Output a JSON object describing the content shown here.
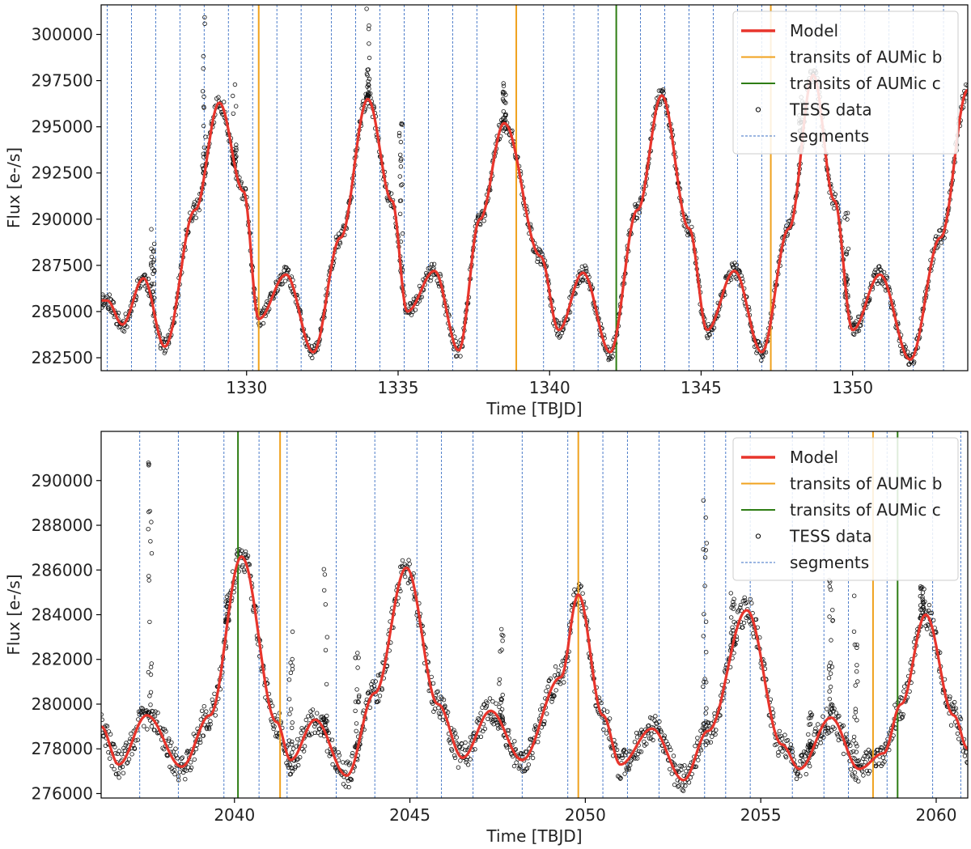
{
  "chart_data": [
    {
      "type": "line",
      "panel": "top",
      "xlabel": "Time [TBJD]",
      "ylabel": "Flux [e-/s]",
      "xlim": [
        1325.2,
        1353.8
      ],
      "ylim": [
        281800,
        301600
      ],
      "xticks": [
        1330,
        1335,
        1340,
        1345,
        1350
      ],
      "yticks": [
        282500,
        285000,
        287500,
        290000,
        292500,
        295000,
        297500,
        300000
      ],
      "legend": {
        "position": "top-right",
        "entries": [
          {
            "label": "Model",
            "color": "#e8352c",
            "kind": "line"
          },
          {
            "label": "transits of AUMic b",
            "color": "#f0a21e",
            "kind": "vline"
          },
          {
            "label": "transits of AUMic c",
            "color": "#2e7d14",
            "kind": "vline"
          },
          {
            "label": "TESS data",
            "color": "#000000",
            "kind": "marker"
          },
          {
            "label": "segments",
            "color": "#3a6fc4",
            "kind": "dashed"
          }
        ]
      },
      "transits_b": [
        1330.4,
        1338.9,
        1347.3
      ],
      "transits_c": [
        1342.2
      ],
      "segments": [
        1325.4,
        1326.2,
        1327.0,
        1327.8,
        1328.6,
        1329.4,
        1330.2,
        1331.0,
        1331.8,
        1332.8,
        1333.6,
        1334.4,
        1335.2,
        1336.0,
        1336.8,
        1337.6,
        1339.8,
        1340.8,
        1341.6,
        1343.0,
        1343.8,
        1344.6,
        1345.4,
        1346.2,
        1347.0,
        1347.8,
        1348.8,
        1349.6,
        1350.4,
        1351.2,
        1352.0,
        1353.0
      ],
      "model_x": [
        1325.4,
        1325.9,
        1326.6,
        1327.3,
        1328.3,
        1329.1,
        1329.9,
        1330.4,
        1331.3,
        1332.2,
        1333.1,
        1334.0,
        1334.8,
        1335.3,
        1336.2,
        1337.0,
        1337.7,
        1338.5,
        1339.7,
        1340.3,
        1341.1,
        1342.0,
        1342.9,
        1343.7,
        1344.6,
        1345.2,
        1346.1,
        1347.0,
        1347.9,
        1348.7,
        1349.4,
        1350.0,
        1350.9,
        1351.9,
        1352.9,
        1353.8
      ],
      "model_y": [
        285600,
        284300,
        286800,
        283100,
        290500,
        296300,
        291500,
        284600,
        287000,
        282800,
        289000,
        296500,
        291000,
        285000,
        287200,
        282900,
        290000,
        295200,
        288000,
        284000,
        287100,
        282800,
        290500,
        296700,
        289500,
        284000,
        287200,
        282800,
        289500,
        297800,
        291000,
        284000,
        287000,
        282400,
        289000,
        297000
      ],
      "scatter_noise": 450,
      "flares": [
        {
          "x": 1326.9,
          "peak": 289500
        },
        {
          "x": 1328.6,
          "peak": 301500
        },
        {
          "x": 1329.6,
          "peak": 297400
        },
        {
          "x": 1334.0,
          "peak": 301500
        },
        {
          "x": 1335.1,
          "peak": 295200
        },
        {
          "x": 1338.5,
          "peak": 297400
        },
        {
          "x": 1348.3,
          "peak": 297500
        },
        {
          "x": 1349.8,
          "peak": 290500
        }
      ]
    },
    {
      "type": "line",
      "panel": "bottom",
      "xlabel": "Time [TBJD]",
      "ylabel": "Flux [e-/s]",
      "xlim": [
        2036.2,
        2060.9
      ],
      "ylim": [
        275800,
        292200
      ],
      "xticks": [
        2040,
        2045,
        2050,
        2055,
        2060
      ],
      "yticks": [
        276000,
        278000,
        280000,
        282000,
        284000,
        286000,
        288000,
        290000
      ],
      "legend": {
        "position": "top-right",
        "entries": [
          {
            "label": "Model",
            "color": "#e8352c",
            "kind": "line"
          },
          {
            "label": "transits of AUMic b",
            "color": "#f0a21e",
            "kind": "vline"
          },
          {
            "label": "transits of AUMic c",
            "color": "#2e7d14",
            "kind": "vline"
          },
          {
            "label": "TESS data",
            "color": "#000000",
            "kind": "marker"
          },
          {
            "label": "segments",
            "color": "#3a6fc4",
            "kind": "dashed"
          }
        ]
      },
      "transits_b": [
        2041.3,
        2049.8,
        2058.2
      ],
      "transits_c": [
        2040.1,
        2058.9
      ],
      "segments": [
        2037.3,
        2038.4,
        2039.7,
        2040.7,
        2041.5,
        2042.9,
        2044.0,
        2045.2,
        2045.9,
        2046.8,
        2048.2,
        2049.5,
        2050.5,
        2051.2,
        2052.1,
        2053.4,
        2054.0,
        2054.7,
        2055.9,
        2056.8,
        2057.5,
        2058.6,
        2059.9,
        2060.7
      ],
      "model_x": [
        2036.2,
        2036.7,
        2037.5,
        2038.5,
        2039.3,
        2040.2,
        2041.2,
        2041.6,
        2042.3,
        2043.2,
        2044.0,
        2044.9,
        2045.8,
        2046.5,
        2047.3,
        2048.2,
        2049.3,
        2049.8,
        2050.5,
        2051.0,
        2051.9,
        2052.8,
        2053.5,
        2054.6,
        2055.6,
        2056.1,
        2057.0,
        2057.8,
        2058.5,
        2059.0,
        2059.7,
        2060.5,
        2060.9
      ],
      "model_y": [
        279000,
        277300,
        279500,
        277200,
        279500,
        286600,
        279200,
        277500,
        279300,
        276800,
        280500,
        286100,
        280000,
        277600,
        279700,
        277500,
        281200,
        284900,
        279500,
        277300,
        278900,
        276600,
        278800,
        284200,
        278200,
        277100,
        279400,
        277100,
        277800,
        280000,
        284000,
        279500,
        278000
      ],
      "scatter_noise": 650,
      "flares": [
        {
          "x": 2037.6,
          "peak": 291300
        },
        {
          "x": 2039.8,
          "peak": 285000
        },
        {
          "x": 2041.6,
          "peak": 283300
        },
        {
          "x": 2042.6,
          "peak": 286200
        },
        {
          "x": 2043.5,
          "peak": 282500
        },
        {
          "x": 2047.6,
          "peak": 283500
        },
        {
          "x": 2053.4,
          "peak": 289700
        },
        {
          "x": 2054.2,
          "peak": 285500
        },
        {
          "x": 2056.4,
          "peak": 280000
        },
        {
          "x": 2057.0,
          "peak": 286200
        },
        {
          "x": 2057.7,
          "peak": 285200
        },
        {
          "x": 2059.6,
          "peak": 285300
        }
      ]
    }
  ]
}
